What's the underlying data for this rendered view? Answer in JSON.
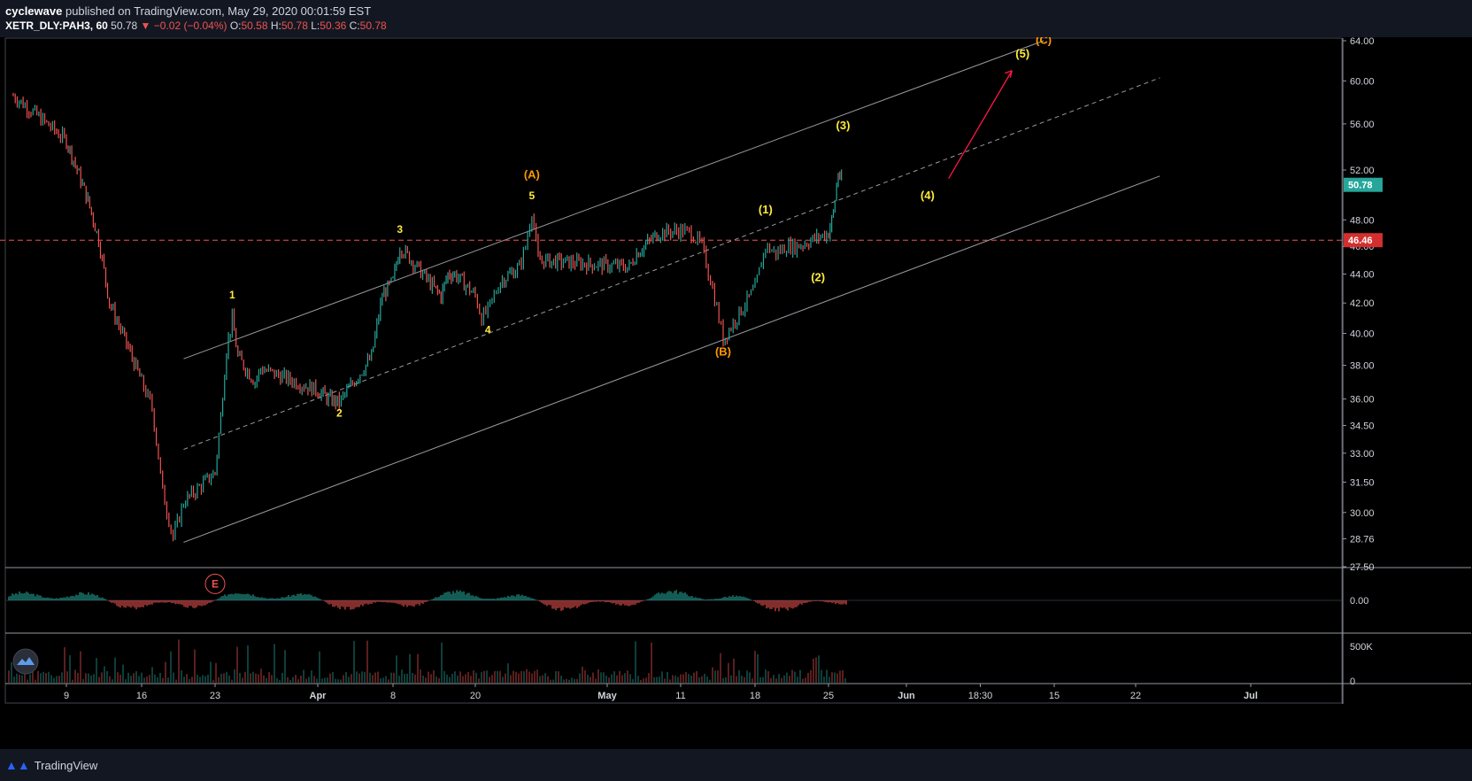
{
  "header": {
    "author": "cyclewave",
    "published_text": "published on TradingView.com, May 29, 2020 00:01:59 EST",
    "symbol": "XETR_DLY:PAH3, 60",
    "last": "50.78",
    "change": "▼ −0.02 (−0.04%)",
    "o_label": "O:",
    "o_value": "50.58",
    "h_label": "H:",
    "h_value": "50.78",
    "l_label": "L:",
    "l_value": "50.36",
    "c_label": "C:",
    "c_value": "50.78"
  },
  "footer": {
    "brand": "TradingView",
    "logo_icon": "tradingview-logo-icon"
  },
  "chart_data": {
    "type": "candlestick",
    "price_axis": {
      "ticks": [
        "64.00",
        "60.00",
        "56.00",
        "52.00",
        "48.00",
        "46.00",
        "44.00",
        "42.00",
        "40.00",
        "38.00",
        "36.00",
        "34.50",
        "33.00",
        "31.50",
        "30.00",
        "28.76",
        "27.50"
      ],
      "ylim": [
        27.5,
        64
      ]
    },
    "current_price": {
      "label": "50.78",
      "value": 50.78,
      "color": "#26a69a"
    },
    "horizontal_level": {
      "label": "46.46",
      "value": 46.46,
      "color": "#ef5350",
      "style": "dashed"
    },
    "time_axis": {
      "ticks": [
        "9",
        "16",
        "23",
        "Apr",
        "8",
        "20",
        "May",
        "11",
        "18",
        "25",
        "Jun",
        "18:30",
        "15",
        "22",
        "Jul"
      ]
    },
    "series": [
      {
        "name": "PAH3 hourly close (approx.)",
        "points": [
          {
            "date": "Mar 6",
            "close": 58.6
          },
          {
            "date": "Mar 9",
            "close": 54.5
          },
          {
            "date": "Mar 10",
            "close": 52.0
          },
          {
            "date": "Mar 11",
            "close": 49.5
          },
          {
            "date": "Mar 12",
            "close": 46.5
          },
          {
            "date": "Mar 13",
            "close": 42.0
          },
          {
            "date": "Mar 16",
            "close": 37.0
          },
          {
            "date": "Mar 17",
            "close": 35.5
          },
          {
            "date": "Mar 18",
            "close": 31.0
          },
          {
            "date": "Mar 19",
            "close": 28.8
          },
          {
            "date": "Mar 20",
            "close": 30.5
          },
          {
            "date": "Mar 23",
            "close": 32.0
          },
          {
            "date": "Mar 24",
            "close": 35.0
          },
          {
            "date": "Mar 25",
            "close": 39.0
          },
          {
            "date": "Mar 26",
            "close": 40.9
          },
          {
            "date": "Mar 27",
            "close": 38.5
          },
          {
            "date": "Mar 30",
            "close": 37.0
          },
          {
            "date": "Mar 31",
            "close": 37.8
          },
          {
            "date": "Apr 1",
            "close": 36.5
          },
          {
            "date": "Apr 2",
            "close": 36.0
          },
          {
            "date": "Apr 3",
            "close": 35.8
          },
          {
            "date": "Apr 6",
            "close": 38.5
          },
          {
            "date": "Apr 7",
            "close": 42.5
          },
          {
            "date": "Apr 8",
            "close": 43.5
          },
          {
            "date": "Apr 9",
            "close": 46.0
          },
          {
            "date": "Apr 14",
            "close": 43.0
          },
          {
            "date": "Apr 15",
            "close": 42.5
          },
          {
            "date": "Apr 16",
            "close": 44.0
          },
          {
            "date": "Apr 17",
            "close": 44.0
          },
          {
            "date": "Apr 20",
            "close": 42.5
          },
          {
            "date": "Apr 21",
            "close": 41.0
          },
          {
            "date": "Apr 22",
            "close": 41.5
          },
          {
            "date": "Apr 23",
            "close": 42.5
          },
          {
            "date": "Apr 24",
            "close": 43.5
          },
          {
            "date": "Apr 27",
            "close": 44.5
          },
          {
            "date": "Apr 28",
            "close": 46.0
          },
          {
            "date": "Apr 29",
            "close": 48.7
          },
          {
            "date": "Apr 30",
            "close": 45.0
          },
          {
            "date": "May 4",
            "close": 44.5
          },
          {
            "date": "May 5",
            "close": 45.5
          },
          {
            "date": "May 6",
            "close": 46.0
          },
          {
            "date": "May 7",
            "close": 46.5
          },
          {
            "date": "May 8",
            "close": 47.0
          },
          {
            "date": "May 11",
            "close": 47.2
          },
          {
            "date": "May 12",
            "close": 47.0
          },
          {
            "date": "May 13",
            "close": 46.0
          },
          {
            "date": "May 14",
            "close": 43.0
          },
          {
            "date": "May 15",
            "close": 39.6
          },
          {
            "date": "May 18",
            "close": 43.0
          },
          {
            "date": "May 19",
            "close": 46.0
          },
          {
            "date": "May 20",
            "close": 45.5
          },
          {
            "date": "May 21",
            "close": 46.0
          },
          {
            "date": "May 22",
            "close": 46.0
          },
          {
            "date": "May 25",
            "close": 47.0
          },
          {
            "date": "May 26",
            "close": 48.5
          },
          {
            "date": "May 27",
            "close": 51.8
          },
          {
            "date": "May 28",
            "close": 50.78
          }
        ]
      }
    ],
    "wave_labels": [
      {
        "text": "E",
        "date": "Mar 23",
        "price": 26.6,
        "color": "#ef5350",
        "circled": true
      },
      {
        "text": "1",
        "date": "Mar 26",
        "price": 42.3,
        "color": "#ffeb3b"
      },
      {
        "text": "2",
        "date": "Apr 3",
        "price": 35.0,
        "color": "#ffeb3b"
      },
      {
        "text": "3",
        "date": "Apr 9",
        "price": 47.0,
        "color": "#ffeb3b"
      },
      {
        "text": "4",
        "date": "Apr 22",
        "price": 40.0,
        "color": "#ffeb3b"
      },
      {
        "text": "5",
        "date": "Apr 29",
        "price": 49.6,
        "color": "#ffeb3b"
      },
      {
        "text": "(A)",
        "date": "Apr 29",
        "price": 51.3,
        "color": "#ff9800"
      },
      {
        "text": "(B)",
        "date": "May 15",
        "price": 38.6,
        "color": "#ff9800"
      },
      {
        "text": "(1)",
        "date": "May 19",
        "price": 48.5,
        "color": "#ffeb3b"
      },
      {
        "text": "(2)",
        "date": "May 24",
        "price": 43.5,
        "color": "#ffeb3b"
      },
      {
        "text": "(3)",
        "date": "May 28",
        "price": 55.5,
        "color": "#ffeb3b"
      },
      {
        "text": "(4)",
        "date": "Jun 3",
        "price": 49.6,
        "color": "#ffeb3b"
      },
      {
        "text": "(5)",
        "date": "Jun 12",
        "price": 62.3,
        "color": "#ffeb3b"
      },
      {
        "text": "(C)",
        "date": "Jun 14",
        "price": 63.7,
        "color": "#ff9800"
      }
    ],
    "oscillator_axis": {
      "ticks": [
        "0.00"
      ]
    },
    "volume_axis": {
      "ticks": [
        "500K",
        "0"
      ]
    }
  }
}
